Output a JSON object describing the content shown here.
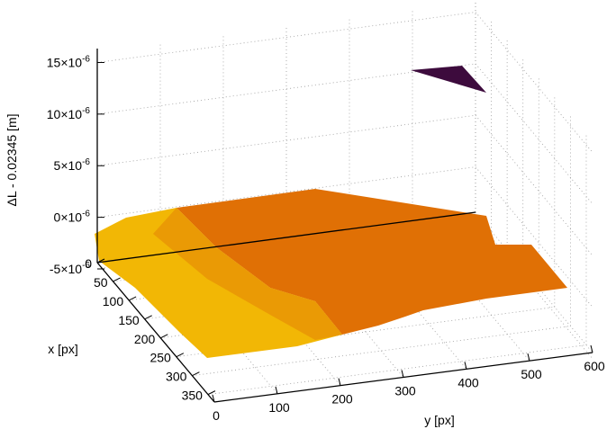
{
  "chart_data": {
    "type": "scatter",
    "subtype": "3d-surface-scatter",
    "title": "",
    "zlabel": "ΔL - 0.02345 [m]",
    "xlabel": "x [px]",
    "ylabel": "y [px]",
    "z_ticks": [
      {
        "value": -5e-06,
        "label": "-5×10",
        "exp": "-6"
      },
      {
        "value": 0,
        "label": "0×10",
        "exp": "-6"
      },
      {
        "value": 5e-06,
        "label": "5×10",
        "exp": "-6"
      },
      {
        "value": 1e-05,
        "label": "10×10",
        "exp": "-6"
      },
      {
        "value": 1.5e-05,
        "label": "15×10",
        "exp": "-6"
      }
    ],
    "x_ticks": [
      0,
      50,
      100,
      150,
      200,
      250,
      300,
      350
    ],
    "y_ticks": [
      0,
      100,
      200,
      300,
      400,
      500,
      600
    ],
    "xlim": [
      0,
      370
    ],
    "ylim": [
      0,
      600
    ],
    "zlim": [
      -5e-06,
      1.6e-05
    ],
    "grid": true,
    "colors": {
      "dark_patch": "#3d0b3d",
      "orange_surface": "#e07005",
      "yellow_surface": "#f2b705",
      "grid": "#9a9a9a"
    },
    "regions": [
      {
        "name": "elevated patch",
        "color": "#3d0b3d",
        "approx_z": 1.4e-05
      },
      {
        "name": "main surface",
        "color": "#e07005",
        "approx_z": 0
      },
      {
        "name": "edge region",
        "color": "#f2b705",
        "approx_z": -2e-06
      }
    ]
  }
}
